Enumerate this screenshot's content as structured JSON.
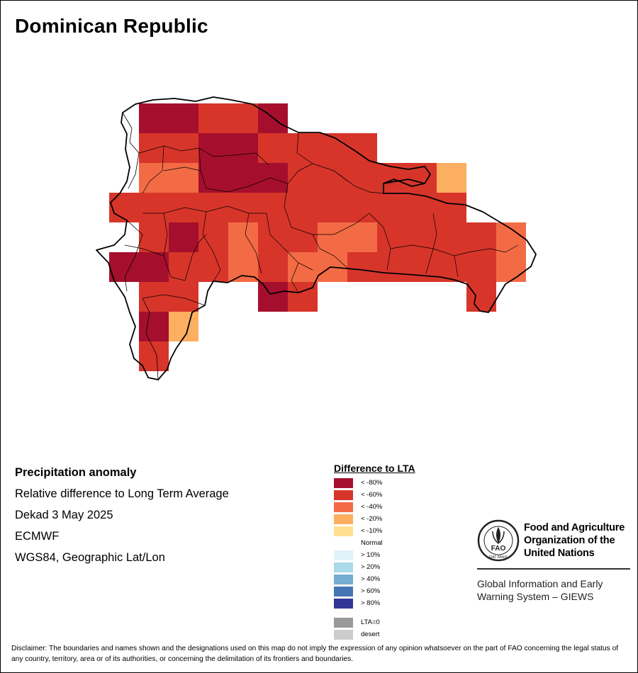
{
  "map": {
    "title": "Dominican Republic"
  },
  "info": {
    "heading": "Precipitation anomaly",
    "subtitle": "Relative difference to Long Term Average",
    "period": "Dekad 3 May 2025",
    "source": "ECMWF",
    "projection": "WGS84, Geographic Lat/Lon"
  },
  "legend": {
    "title": "Difference to LTA",
    "items": [
      {
        "label": "< -80%",
        "color": "#a50f2d"
      },
      {
        "label": "< -60%",
        "color": "#d7352a"
      },
      {
        "label": "< -40%",
        "color": "#f36b45"
      },
      {
        "label": "< -20%",
        "color": "#fcae61"
      },
      {
        "label": "< -10%",
        "color": "#fee08f"
      },
      {
        "label": "Normal",
        "color": "#ffffff"
      },
      {
        "label": "> 10%",
        "color": "#e0f3f8"
      },
      {
        "label": "> 20%",
        "color": "#abd9e9"
      },
      {
        "label": "> 40%",
        "color": "#74add1"
      },
      {
        "label": "> 60%",
        "color": "#4575b4"
      },
      {
        "label": "> 80%",
        "color": "#313695"
      },
      {
        "label": "LTA=0",
        "color": "#999999"
      },
      {
        "label": "desert",
        "color": "#cccccc"
      }
    ]
  },
  "fao": {
    "logo_text": "FAO",
    "logo_motto": "FIAT PANIS",
    "org_name": [
      "Food and Agriculture",
      "Organization of the",
      "United Nations"
    ],
    "system_name": [
      "Global Information and Early",
      "Warning System – GIEWS"
    ]
  },
  "disclaimer": "Disclaimer: The boundaries and names shown and the designations used on this map do not imply the expression of any opinion whatsoever on the part of FAO concerning the legal status of any country, territory, area or of its authorities, or concerning the delimitation of its frontiers and boundaries."
}
